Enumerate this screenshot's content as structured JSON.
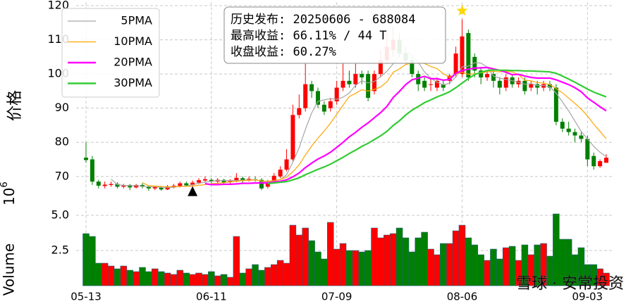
{
  "chart_data": {
    "type": "candlestick",
    "y_label": "价格",
    "ylim": [
      62,
      121
    ],
    "yticks": [
      70,
      80,
      90,
      100,
      110,
      120
    ],
    "grid": true,
    "up_color": "#ff0000",
    "down_color": "#008000",
    "legend_position": "upper left",
    "categories": [
      "05-13",
      null,
      null,
      null,
      null,
      null,
      null,
      null,
      null,
      null,
      null,
      null,
      null,
      null,
      null,
      null,
      null,
      null,
      null,
      null,
      "06-11",
      null,
      null,
      null,
      null,
      null,
      null,
      null,
      null,
      null,
      null,
      null,
      null,
      null,
      null,
      null,
      null,
      null,
      null,
      null,
      "07-09",
      null,
      null,
      null,
      null,
      null,
      null,
      null,
      null,
      null,
      null,
      null,
      null,
      null,
      null,
      null,
      null,
      null,
      null,
      null,
      "08-06",
      null,
      null,
      null,
      null,
      null,
      null,
      null,
      null,
      null,
      null,
      null,
      null,
      null,
      null,
      null,
      null,
      null,
      null,
      null,
      "09-03",
      null,
      null,
      null
    ],
    "open": [
      75.5,
      75,
      68.5,
      67.2,
      67.5,
      67.8,
      67,
      67.5,
      66.8,
      67.5,
      67,
      66.5,
      66.8,
      66.2,
      67,
      67.2,
      68,
      67.5,
      68.2,
      68.8,
      69,
      68.5,
      69,
      68.3,
      68.8,
      69.5,
      68.8,
      69.2,
      69,
      67,
      68.5,
      70,
      72,
      75,
      88,
      90,
      97,
      95,
      91,
      90,
      92,
      96,
      98,
      97,
      100,
      100,
      95,
      100,
      104,
      107,
      110,
      106,
      104,
      100,
      98,
      97,
      96,
      97,
      98,
      100,
      100,
      112,
      105,
      101,
      99,
      100,
      98,
      96,
      99,
      97,
      98,
      96,
      97,
      96,
      97,
      96,
      86,
      84,
      83,
      82,
      81,
      76,
      73,
      74
    ],
    "high": [
      80,
      76,
      69,
      68.5,
      68.5,
      68.3,
      67.8,
      67.8,
      67.8,
      68,
      67.3,
      67.3,
      67,
      67.5,
      67.8,
      68.5,
      68.5,
      68.8,
      69.5,
      70,
      69.5,
      69.5,
      69.3,
      69.2,
      71,
      70,
      70,
      70,
      69.5,
      69,
      71,
      73,
      78,
      91,
      94,
      103,
      98,
      96,
      92,
      93,
      98,
      103,
      101,
      103,
      101,
      101,
      101,
      107,
      112,
      114,
      112,
      108,
      105,
      101,
      99,
      99,
      99,
      98,
      100,
      108,
      116,
      113,
      106,
      102,
      101,
      101,
      99,
      100,
      100,
      99,
      99,
      98,
      98,
      98,
      98,
      97,
      87,
      86,
      84,
      83,
      82,
      77,
      75,
      76.5
    ],
    "low": [
      74,
      67.5,
      66.5,
      66.5,
      67,
      66.5,
      66.5,
      66,
      66.5,
      66.5,
      65.8,
      66,
      65.8,
      66,
      66.5,
      66.8,
      67,
      67,
      67.8,
      68.2,
      68,
      68,
      67.8,
      67.8,
      68.3,
      68,
      68.5,
      68.5,
      66,
      66.5,
      68,
      69.5,
      71.5,
      74.5,
      87,
      89,
      93,
      90,
      88,
      89,
      91,
      95,
      96,
      96,
      97,
      92,
      94,
      99,
      103,
      105,
      105,
      103,
      99,
      95,
      95,
      95,
      95,
      95,
      97,
      99,
      99,
      98,
      99,
      97,
      98,
      96,
      94,
      95,
      96,
      96,
      94,
      95,
      94,
      95,
      95,
      85,
      83,
      82,
      80,
      80,
      73,
      72,
      72.5,
      74.5
    ],
    "close": [
      74.8,
      68.5,
      67.3,
      67.6,
      67.8,
      67,
      67.4,
      66.8,
      67.5,
      67,
      66.5,
      66.9,
      66.2,
      67,
      67.3,
      68,
      67.4,
      68.2,
      68.9,
      69.2,
      68.5,
      69,
      68.3,
      68.8,
      69.6,
      68.8,
      69.3,
      69,
      66.5,
      68.6,
      70.2,
      72,
      75,
      88,
      90,
      97,
      95,
      91,
      89,
      92,
      96,
      98,
      97,
      100,
      99,
      93,
      100,
      104,
      108,
      110,
      106,
      104,
      100,
      97,
      96,
      97,
      98,
      96,
      99.5,
      106,
      111,
      99,
      101,
      99,
      100,
      98,
      96,
      99,
      97,
      98,
      95,
      97,
      96,
      97,
      96,
      86,
      84,
      83,
      82,
      81,
      75,
      73,
      74.5,
      75.5
    ],
    "series": [
      {
        "name": "5PMA",
        "color": "#a6a6a6",
        "values": [
          null,
          null,
          null,
          null,
          69.2,
          67.6,
          67.4,
          67.3,
          67.3,
          67.1,
          67.0,
          67.0,
          66.8,
          66.7,
          66.8,
          67.1,
          67.2,
          67.6,
          68.0,
          68.3,
          68.6,
          68.8,
          68.8,
          68.8,
          68.8,
          68.9,
          69.0,
          69.1,
          68.6,
          68.4,
          68.7,
          69.1,
          70.5,
          74.2,
          78.4,
          83.8,
          88.6,
          92.0,
          92.4,
          92.8,
          92.6,
          93.2,
          94.4,
          96.6,
          98.0,
          97.4,
          97.8,
          99.2,
          100.8,
          103.0,
          105.6,
          106.4,
          105.6,
          103.4,
          100.6,
          98.8,
          97.6,
          96.8,
          97.3,
          99.1,
          102.1,
          102.3,
          103.3,
          103.2,
          102.0,
          99.4,
          98.8,
          98.4,
          98.0,
          97.6,
          97.0,
          97.2,
          96.6,
          96.6,
          96.2,
          94.4,
          91.8,
          89.2,
          86.2,
          83.2,
          81.0,
          78.8,
          77.1,
          75.8
        ]
      },
      {
        "name": "10PMA",
        "color": "#ffa500",
        "values": [
          null,
          null,
          null,
          null,
          null,
          null,
          null,
          null,
          null,
          68.2,
          67.3,
          67.2,
          67.1,
          67.0,
          67.0,
          67.1,
          67.1,
          67.2,
          67.4,
          67.6,
          67.9,
          68.0,
          68.2,
          68.4,
          68.6,
          68.8,
          68.9,
          69.0,
          68.7,
          68.6,
          68.8,
          69.1,
          69.8,
          71.4,
          73.4,
          76.3,
          78.9,
          81.2,
          83.3,
          85.6,
          88.2,
          90.9,
          93.4,
          94.3,
          95.4,
          95.0,
          95.5,
          96.2,
          97.7,
          100.5,
          101.5,
          102.8,
          103.2,
          103.2,
          103.1,
          102.2,
          101.6,
          100.1,
          99.0,
          99.9,
          100.5,
          99.9,
          100.1,
          100.3,
          100.6,
          100.8,
          100.6,
          100.8,
          100.6,
          99.8,
          98.2,
          98.0,
          97.5,
          97.3,
          96.9,
          95.7,
          94.5,
          92.9,
          91.4,
          89.7,
          87.7,
          85.3,
          83.2,
          81.0
        ]
      },
      {
        "name": "20PMA",
        "color": "#ff00ff",
        "values": [
          null,
          null,
          null,
          null,
          null,
          null,
          null,
          null,
          null,
          null,
          null,
          null,
          null,
          null,
          null,
          null,
          null,
          null,
          null,
          67.9,
          67.6,
          67.6,
          67.7,
          67.7,
          67.8,
          68.0,
          68.0,
          68.1,
          68.1,
          68.1,
          68.4,
          68.6,
          69.0,
          69.9,
          71.0,
          72.6,
          73.9,
          75.1,
          76.0,
          77.1,
          78.5,
          80.0,
          81.6,
          82.9,
          84.4,
          85.7,
          87.2,
          88.7,
          90.5,
          93.1,
          94.9,
          96.9,
          98.3,
          98.8,
          99.3,
          98.6,
          98.6,
          98.2,
          98.4,
          100.2,
          101.0,
          101.4,
          101.7,
          101.8,
          101.9,
          101.5,
          101.1,
          100.5,
          99.8,
          99.9,
          99.4,
          99.0,
          98.8,
          98.8,
          98.8,
          98.3,
          97.6,
          96.9,
          96.0,
          94.8,
          93.0,
          91.7,
          90.4,
          89.2
        ]
      },
      {
        "name": "30PMA",
        "color": "#33cc33",
        "values": [
          null,
          null,
          null,
          null,
          null,
          null,
          null,
          null,
          null,
          null,
          null,
          null,
          null,
          null,
          null,
          null,
          null,
          null,
          null,
          null,
          null,
          null,
          null,
          null,
          null,
          null,
          null,
          null,
          null,
          67.9,
          68.1,
          68.3,
          68.5,
          69.0,
          69.6,
          70.5,
          71.3,
          72.1,
          72.8,
          73.6,
          74.6,
          75.6,
          76.7,
          77.7,
          78.8,
          79.7,
          80.8,
          81.9,
          83.2,
          84.9,
          86.3,
          88.0,
          89.4,
          90.5,
          91.6,
          92.4,
          93.3,
          94.0,
          94.8,
          96.0,
          97.3,
          98.7,
          99.8,
          100.5,
          101.0,
          101.2,
          101.1,
          101.1,
          101.0,
          101.0,
          100.9,
          100.9,
          100.8,
          100.7,
          100.6,
          100.2,
          99.4,
          98.5,
          97.6,
          96.6,
          95.6,
          94.7,
          94.0,
          93.3
        ]
      }
    ],
    "volume": {
      "label": "Volume",
      "scale_base": "10",
      "scale_exponent": "6",
      "ylim": [
        0,
        5.7
      ],
      "yticks": [
        2.5,
        {
          "value": 5,
          "label": "5.0"
        }
      ],
      "values": [
        3.7,
        3.5,
        1.6,
        1.6,
        1.4,
        1.2,
        1.4,
        1.1,
        1.0,
        1.3,
        1.0,
        1.2,
        1.0,
        0.9,
        0.8,
        1.1,
        0.9,
        0.8,
        0.9,
        0.8,
        1.0,
        0.7,
        0.8,
        0.6,
        3.5,
        0.9,
        1.2,
        1.5,
        1.1,
        1.3,
        1.5,
        1.8,
        1.6,
        4.3,
        3.6,
        4.1,
        3.2,
        2.4,
        1.9,
        4.5,
        2.6,
        3.0,
        2.5,
        2.5,
        2.4,
        2.5,
        4.1,
        3.4,
        3.6,
        3.7,
        4.1,
        3.4,
        2.4,
        3.4,
        3.8,
        2.6,
        2.2,
        3.0,
        3.0,
        3.9,
        4.3,
        3.4,
        2.9,
        2.2,
        1.8,
        2.6,
        1.9,
        2.7,
        2.8,
        1.8,
        2.9,
        2.2,
        2.9,
        3.0,
        2.1,
        5.1,
        3.3,
        3.3,
        2.2,
        2.7,
        1.5,
        1.5,
        1.2,
        0.9
      ]
    },
    "info_box": [
      "历史发布: 20250606 - 688084",
      "最高收益: 66.11% / 44 T",
      "收盘收益: 60.27%"
    ],
    "buy_marker": {
      "index": 17,
      "value": 65.5
    },
    "peak_marker": {
      "index": 60,
      "value": 118.5
    },
    "watermark": "雪球 · 安常投资"
  }
}
